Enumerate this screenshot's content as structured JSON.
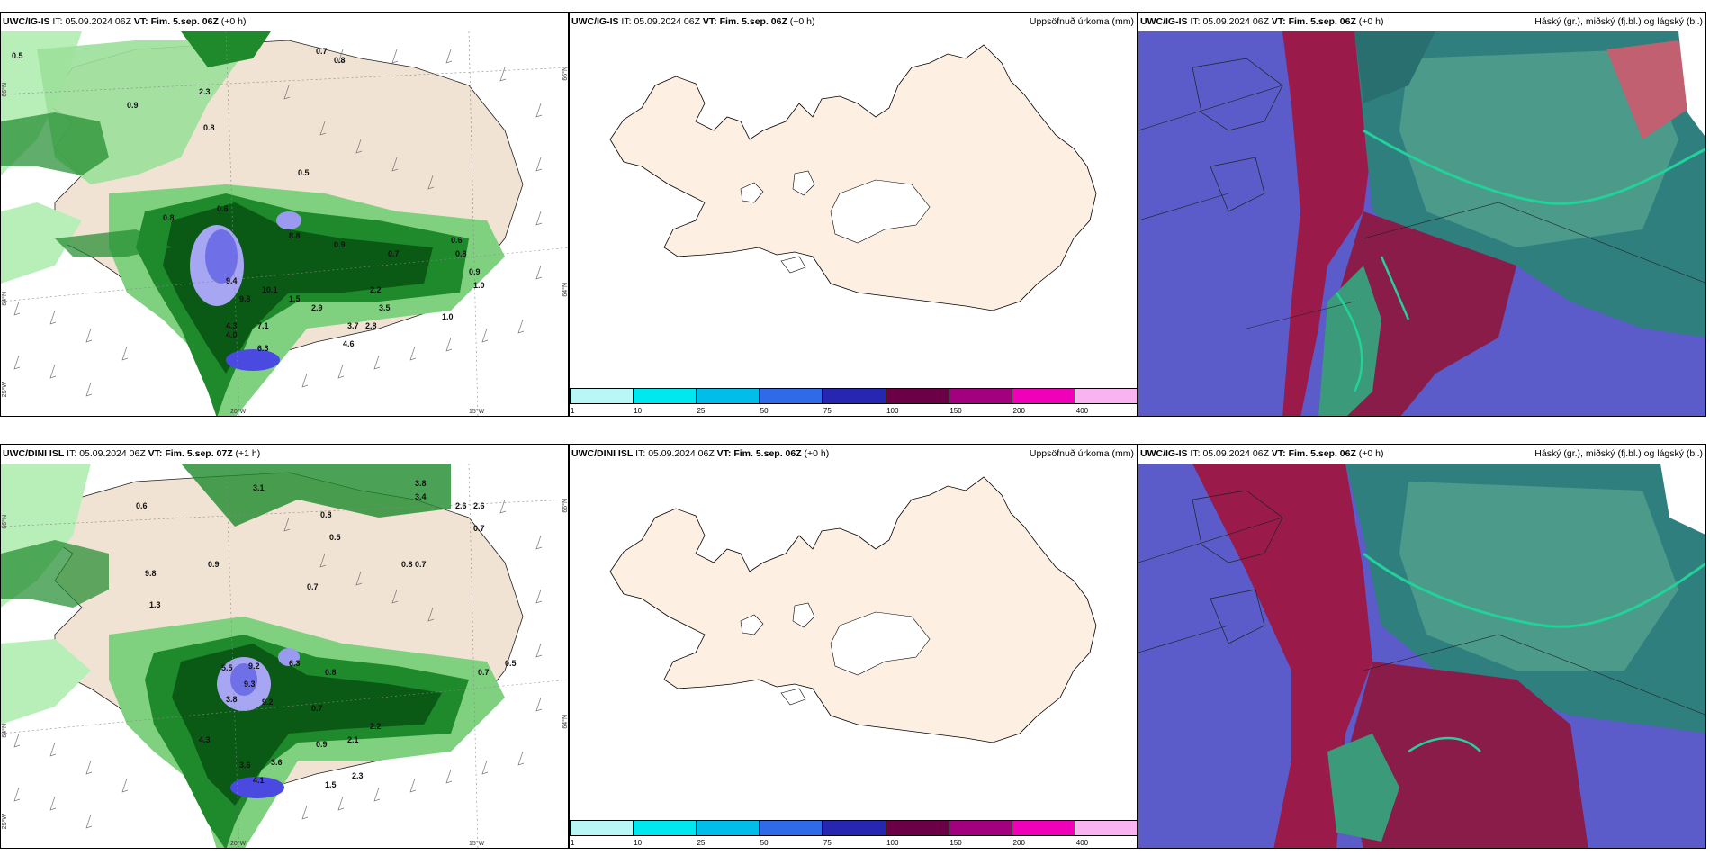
{
  "panels": [
    {
      "id": "ig-precip",
      "model": "UWC/IG-IS",
      "it": "05.09.2024 06Z",
      "vt": "Fim. 5.sep. 06Z",
      "lead": "(+0 h)",
      "right_title": ""
    },
    {
      "id": "ig-accum",
      "model": "UWC/IG-IS",
      "it": "05.09.2024 06Z",
      "vt": "Fim. 5.sep. 06Z",
      "lead": "(+0 h)",
      "right_title": "Uppsöfnuð úrkoma (mm)"
    },
    {
      "id": "ig-cloud",
      "model": "UWC/IG-IS",
      "it": "05.09.2024 06Z",
      "vt": "Fim. 5.sep. 06Z",
      "lead": "(+0 h)",
      "right_title": "Háský (gr.), miðský (fj.bl.) og lágský (bl.)"
    },
    {
      "id": "dini-precip",
      "model": "UWC/DINI ISL",
      "it": "05.09.2024 06Z",
      "vt": "Fim. 5.sep. 07Z",
      "lead": "(+1 h)",
      "right_title": ""
    },
    {
      "id": "dini-accum",
      "model": "UWC/DINI ISL",
      "it": "05.09.2024 06Z",
      "vt": "Fim. 5.sep. 06Z",
      "lead": "(+0 h)",
      "right_title": "Uppsöfnuð úrkoma (mm)"
    },
    {
      "id": "dini-cloud",
      "model": "UWC/IG-IS",
      "it": "05.09.2024 06Z",
      "vt": "Fim. 5.sep. 06Z",
      "lead": "(+0 h)",
      "right_title": "Háský (gr.), miðský (fj.bl.) og lágský (bl.)"
    }
  ],
  "labels": {
    "it": "IT:",
    "vt": "VT:"
  },
  "axis": {
    "lat66": "66°N",
    "lat64": "64°N",
    "lon25": "25°W",
    "lon20": "20°W",
    "lon15": "15°W"
  },
  "colorbar": {
    "colors": [
      "#b9f7f7",
      "#00e8ef",
      "#00bde9",
      "#2f6ae8",
      "#2626b3",
      "#6b0047",
      "#a30080",
      "#f000b8",
      "#f8b3f0"
    ],
    "ticks": [
      "1",
      "10",
      "25",
      "50",
      "75",
      "100",
      "150",
      "200",
      "400"
    ]
  },
  "precip_labels_top": [
    "0.5",
    "0.7",
    "0.8",
    "0.9",
    "2.3",
    "0.8",
    "0.5",
    "0.8",
    "0.6",
    "8.8",
    "0.9",
    "0.7",
    "9.4",
    "9.8",
    "10.1",
    "2.2",
    "1.5",
    "2.9",
    "4.3",
    "7.1",
    "4.0",
    "6.3",
    "3.7",
    "2.8",
    "4.6",
    "3.5",
    "1.0",
    "0.6",
    "0.8",
    "0.9",
    "1.0"
  ],
  "precip_labels_bottom": [
    "3.1",
    "3.8",
    "3.4",
    "2.6",
    "2.6",
    "0.7",
    "0.6",
    "0.8",
    "0.5",
    "0.8",
    "0.7",
    "0.9",
    "9.8",
    "0.7",
    "1.3",
    "5.5",
    "9.2",
    "9.3",
    "6.3",
    "0.8",
    "3.8",
    "9.2",
    "0.7",
    "2.1",
    "2.2",
    "0.9",
    "4.3",
    "3.6",
    "4.1",
    "3.6",
    "0.5",
    "0.7",
    "2.3",
    "1.5"
  ]
}
